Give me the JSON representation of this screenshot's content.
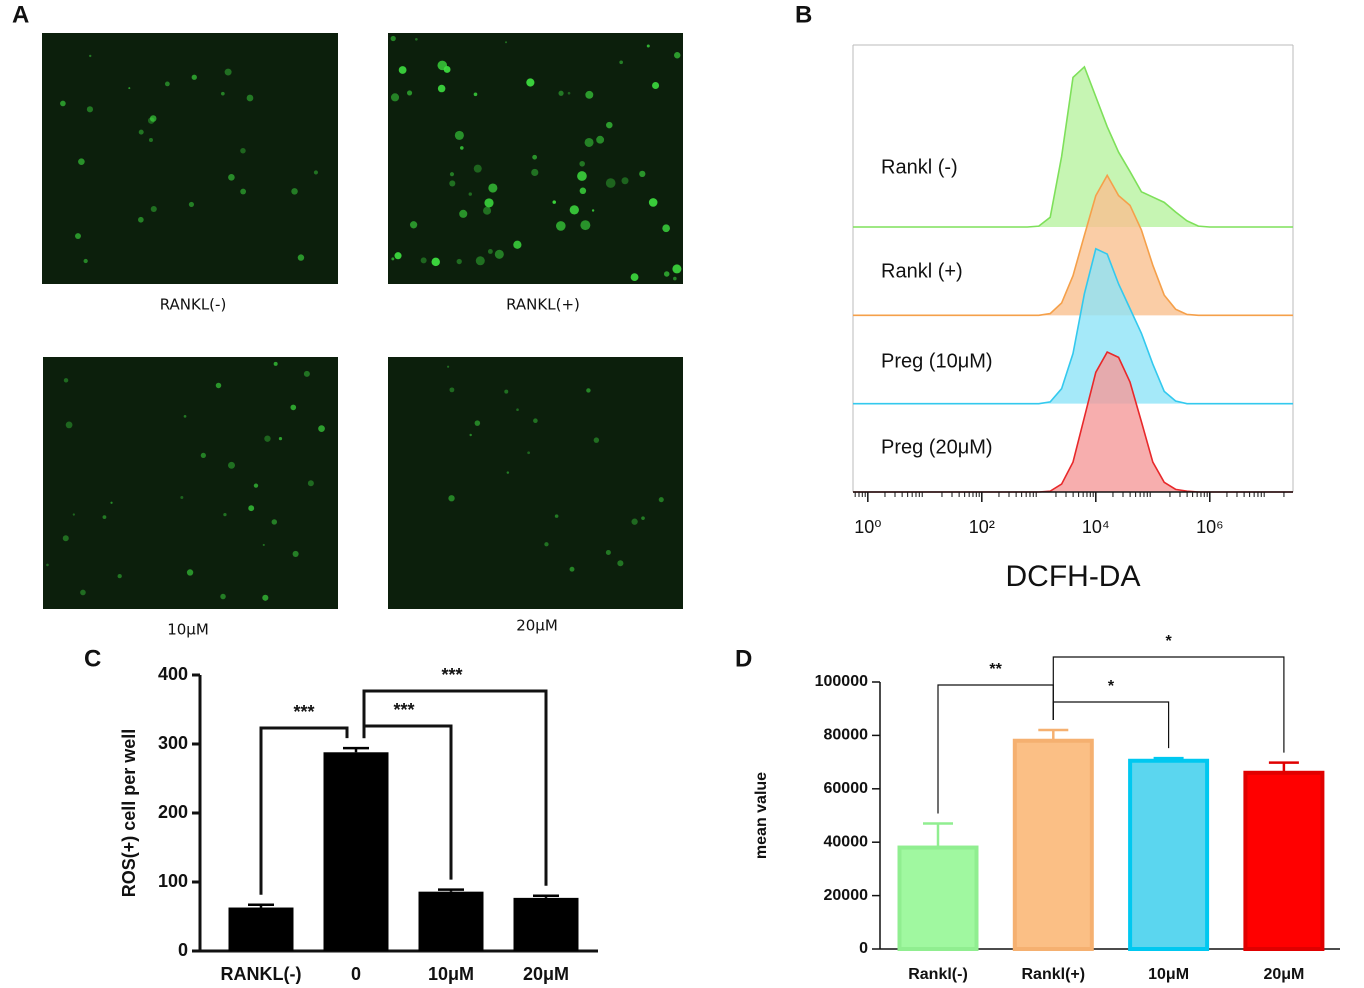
{
  "panel_labels": [
    "A",
    "B",
    "C",
    "D"
  ],
  "images": {
    "labels": [
      "RANKL(-)",
      "RANKL(+)",
      "10μM",
      "20μM"
    ]
  },
  "chart_data": [
    {
      "type": "density",
      "xlabel": "DCFH-DA",
      "log_x": true,
      "xlim": [
        -0.26,
        7.46
      ],
      "xticks": [
        {
          "value": 0,
          "label": "10⁰"
        },
        {
          "value": 2,
          "label": "10²"
        },
        {
          "value": 4,
          "label": "10⁴"
        },
        {
          "value": 6,
          "label": "10⁶"
        }
      ],
      "ylim": [
        0,
        100
      ],
      "x": [
        2.6,
        2.8,
        3.0,
        3.2,
        3.4,
        3.6,
        3.8,
        4.0,
        4.2,
        4.4,
        4.6,
        4.8,
        5.0,
        5.2,
        5.4,
        5.6,
        5.8,
        6.0
      ],
      "series": [
        {
          "name": "Rankl (-)",
          "color": "#7ee05a",
          "fill": "#b8f2a0",
          "values": [
            0,
            0,
            1,
            11,
            80,
            170,
            182,
            148,
            114,
            85,
            63,
            40,
            34,
            28,
            17,
            7,
            1,
            0
          ]
        },
        {
          "name": "Rankl (+)",
          "color": "#f5a04a",
          "fill": "#f9c090",
          "values": [
            0,
            0,
            0,
            2,
            14,
            45,
            91,
            136,
            159,
            136,
            125,
            97,
            57,
            23,
            7,
            1,
            0,
            0
          ]
        },
        {
          "name": "Preg (10μM)",
          "color": "#33c9ee",
          "fill": "#8fe4f8",
          "values": [
            0,
            0,
            0,
            2,
            17,
            57,
            125,
            176,
            170,
            136,
            108,
            80,
            45,
            14,
            3,
            0,
            0,
            0
          ]
        },
        {
          "name": "Preg (20μM)",
          "color": "#e8282a",
          "fill": "#f59a9a",
          "values": [
            0,
            0,
            0,
            1,
            9,
            34,
            85,
            136,
            159,
            153,
            125,
            80,
            34,
            11,
            3,
            1,
            0,
            0
          ]
        }
      ]
    },
    {
      "type": "bar",
      "ylabel": "ROS(+) cell per well",
      "categories": [
        "RANKL(-)",
        "0",
        "10μM",
        "20μM"
      ],
      "values": [
        63,
        288,
        86,
        77
      ],
      "errors": [
        4,
        6,
        3,
        3
      ],
      "color": "#000000",
      "ylim": [
        0,
        400
      ],
      "yticks": [
        0,
        100,
        200,
        300,
        400
      ],
      "annotations": [
        "***",
        "***",
        "***"
      ]
    },
    {
      "type": "bar",
      "ylabel": "mean value",
      "categories": [
        "Rankl(-)",
        "Rankl(+)",
        "10μM",
        "20μM"
      ],
      "values": [
        38000,
        78000,
        70500,
        66000
      ],
      "errors": [
        9000,
        4000,
        1000,
        3800
      ],
      "colors": [
        "#a0f8a0",
        "#fbbf85",
        "#5bd6ef",
        "#ff0000"
      ],
      "edge_colors": [
        "#90ee90",
        "#f5b070",
        "#00c8f0",
        "#e00000"
      ],
      "ylim": [
        0,
        100000
      ],
      "yticks": [
        0,
        20000,
        40000,
        60000,
        80000,
        100000
      ],
      "annotations": [
        "**",
        "*",
        "*"
      ]
    }
  ]
}
